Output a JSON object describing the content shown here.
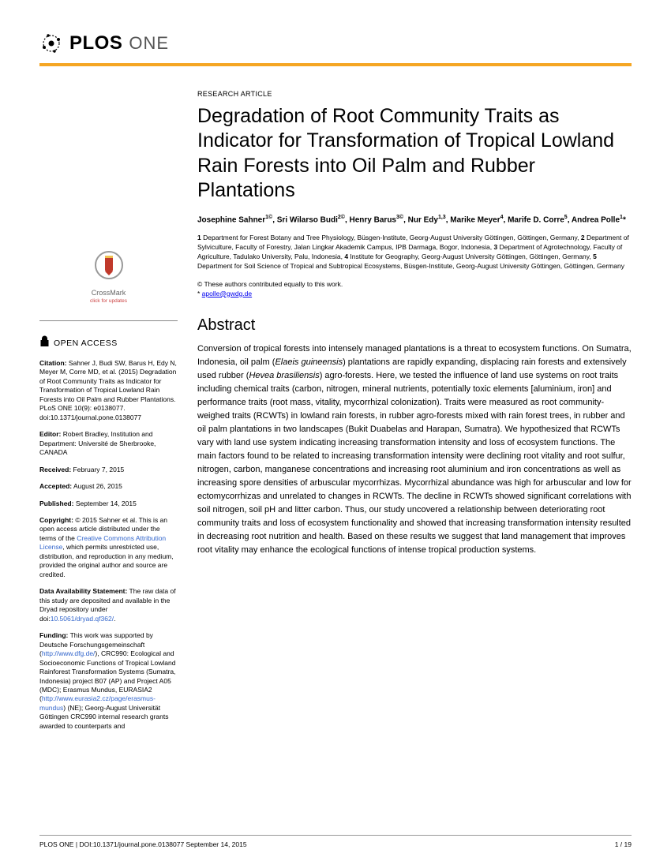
{
  "journal": {
    "brand": "PLOS",
    "sub": "ONE"
  },
  "article_type": "RESEARCH ARTICLE",
  "title": "Degradation of Root Community Traits as Indicator for Transformation of Tropical Lowland Rain Forests into Oil Palm and Rubber Plantations",
  "authors_html": "Josephine Sahner<sup>1©</sup>, Sri Wilarso Budi<sup>2©</sup>, Henry Barus<sup>3©</sup>, Nur Edy<sup>1,3</sup>, Marike Meyer<sup>4</sup>, Marife D. Corre<sup>5</sup>, Andrea Polle<sup>1</sup>*",
  "affiliations_html": "<b>1</b> Department for Forest Botany and Tree Physiology, Büsgen-Institute, Georg-August University Göttingen, Göttingen, Germany, <b>2</b> Department of Sylviculture, Faculty of Forestry, Jalan Lingkar Akademik Campus, IPB Darmaga, Bogor, Indonesia, <b>3</b> Department of Agrotechnology, Faculty of Agriculture, Tadulako University, Palu, Indonesia, <b>4</b> Institute for Geography, Georg-August University Göttingen, Göttingen, Germany, <b>5</b> Department for Soil Science of Tropical and Subtropical Ecosystems, Büsgen-Institute, Georg-August University Göttingen, Göttingen, Germany",
  "equal_contrib": "© These authors contributed equally to this work.",
  "corresponding_email": "apolle@gwdg.de",
  "abstract_heading": "Abstract",
  "abstract_html": "Conversion of tropical forests into intensely managed plantations is a threat to ecosystem functions. On Sumatra, Indonesia, oil palm (<i>Elaeis guineensis</i>) plantations are rapidly expanding, displacing rain forests and extensively used rubber (<i>Hevea brasiliensis</i>) agro-forests. Here, we tested the influence of land use systems on root traits including chemical traits (carbon, nitrogen, mineral nutrients, potentially toxic elements [aluminium, iron] and performance traits (root mass, vitality, mycorrhizal colonization). Traits were measured as root community-weighed traits (RCWTs) in lowland rain forests, in rubber agro-forests mixed with rain forest trees, in rubber and oil palm plantations in two landscapes (Bukit Duabelas and Harapan, Sumatra). We hypothesized that RCWTs vary with land use system indicating increasing transformation intensity and loss of ecosystem functions. The main factors found to be related to increasing transformation intensity were declining root vitality and root sulfur, nitrogen, carbon, manganese concentrations and increasing root aluminium and iron concentrations as well as increasing spore densities of arbuscular mycorrhizas. Mycorrhizal abundance was high for arbuscular and low for ectomycorrhizas and unrelated to changes in RCWTs. The decline in RCWTs showed significant correlations with soil nitrogen, soil pH and litter carbon. Thus, our study uncovered a relationship between deteriorating root community traits and loss of ecosystem functionality and showed that increasing transformation intensity resulted in decreasing root nutrition and health. Based on these results we suggest that land management that improves root vitality may enhance the ecological functions of intense tropical production systems.",
  "sidebar": {
    "crossmark_label": "CrossMark",
    "crossmark_sub": "click for updates",
    "open_access": "OPEN ACCESS",
    "citation_label": "Citation:",
    "citation_text": " Sahner J, Budi SW, Barus H, Edy N, Meyer M, Corre MD, et al. (2015) Degradation of Root Community Traits as Indicator for Transformation of Tropical Lowland Rain Forests into Oil Palm and Rubber Plantations. PLoS ONE 10(9): e0138077. doi:10.1371/journal.pone.0138077",
    "editor_label": "Editor:",
    "editor_text": " Robert Bradley, Institution and Department: Université de Sherbrooke, CANADA",
    "received_label": "Received:",
    "received_text": " February 7, 2015",
    "accepted_label": "Accepted:",
    "accepted_text": " August 26, 2015",
    "published_label": "Published:",
    "published_text": " September 14, 2015",
    "copyright_label": "Copyright:",
    "copyright_html": " © 2015 Sahner et al. This is an open access article distributed under the terms of the <a href='#'>Creative Commons Attribution License</a>, which permits unrestricted use, distribution, and reproduction in any medium, provided the original author and source are credited.",
    "data_label": "Data Availability Statement:",
    "data_html": " The raw data of this study are deposited and available in the Dryad repository under doi:<a href='#'>10.5061/dryad.qf362/</a>.",
    "funding_label": "Funding:",
    "funding_html": " This work was supported by Deutsche Forschungsgemeinschaft (<a href='#'>http://www.dfg.de/</a>), CRC990: Ecological and Socioeconomic Functions of Tropical Lowland Rainforest Transformation Systems (Sumatra, Indonesia) project B07 (AP) and Project A05 (MDC); Erasmus Mundus, EURASIA2 (<a href='#'>http://www.eurasia2.cz/page/erasmus-mundus</a>) (NE); Georg-August Universität Göttingen CRC990 internal research grants awarded to counterparts and"
  },
  "footer": {
    "left": "PLOS ONE | DOI:10.1371/journal.pone.0138077   September 14, 2015",
    "right": "1 / 19"
  },
  "colors": {
    "accent": "#f5a623",
    "link": "#3366cc"
  }
}
